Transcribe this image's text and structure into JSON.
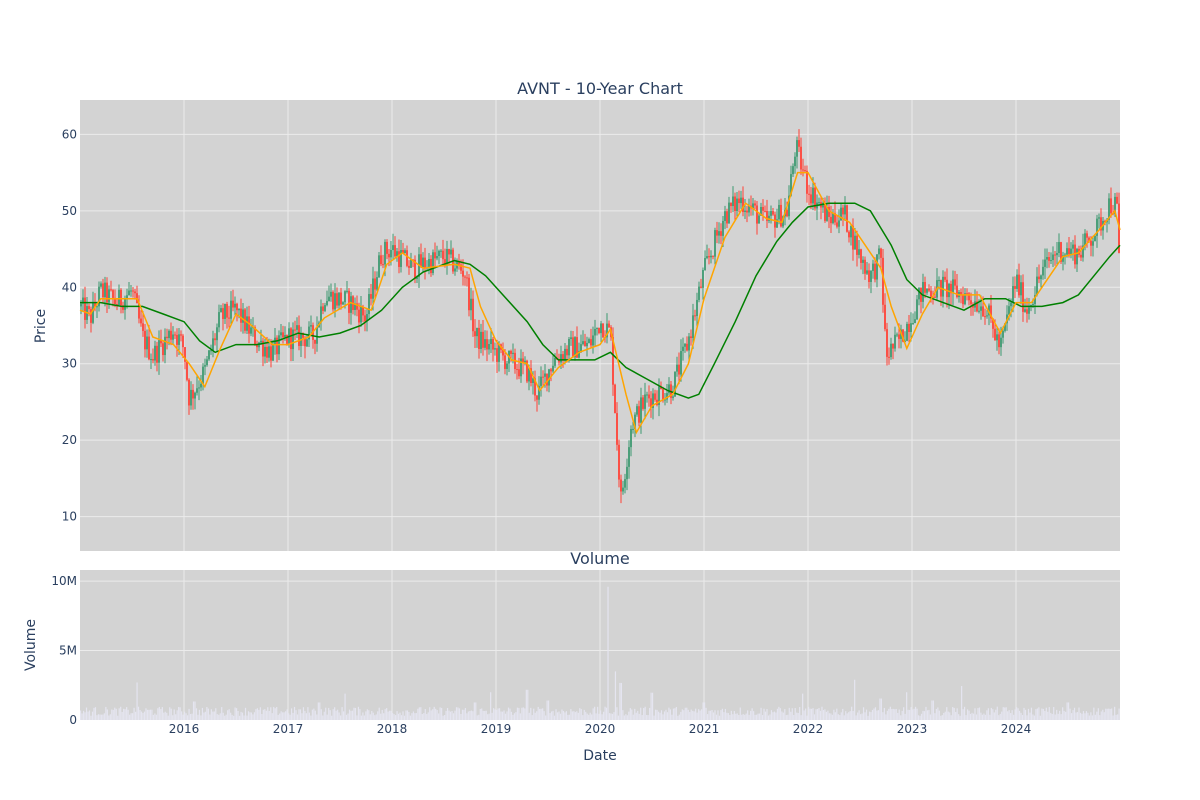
{
  "colors": {
    "background": "#ffffff",
    "plot_bg": "#d3d3d3",
    "grid": "#ebebeb",
    "text": "#2a3f5f",
    "candle_up": "#3d9970",
    "candle_down": "#ff4136",
    "ma_short": "#ffa500",
    "ma_long": "#008000",
    "volume": "#e5e5f0"
  },
  "chart_data": [
    {
      "type": "candlestick",
      "title": "AVNT - 10-Year Chart",
      "ylabel": "Price",
      "xlabel": "",
      "ylim": [
        5.5,
        64.5
      ],
      "x_range": [
        2015.0,
        2025.0
      ],
      "yticks": [
        10,
        20,
        30,
        40,
        50,
        60
      ],
      "ytick_labels": [
        "10",
        "20",
        "30",
        "40",
        "50",
        "60"
      ],
      "grid": true,
      "legend": "none",
      "series": [
        {
          "role": "close",
          "x": [
            2015.0,
            2015.1,
            2015.2,
            2015.35,
            2015.5,
            2015.6,
            2015.7,
            2015.9,
            2016.0,
            2016.05,
            2016.2,
            2016.35,
            2016.5,
            2016.7,
            2016.85,
            2017.0,
            2017.25,
            2017.35,
            2017.6,
            2017.75,
            2017.9,
            2018.0,
            2018.2,
            2018.5,
            2018.7,
            2018.8,
            2018.95,
            2019.1,
            2019.3,
            2019.4,
            2019.55,
            2019.7,
            2019.9,
            2020.0,
            2020.1,
            2020.2,
            2020.3,
            2020.45,
            2020.7,
            2020.85,
            2021.0,
            2021.2,
            2021.35,
            2021.6,
            2021.8,
            2021.88,
            2022.0,
            2022.2,
            2022.35,
            2022.5,
            2022.6,
            2022.7,
            2022.75,
            2022.9,
            2023.1,
            2023.3,
            2023.5,
            2023.7,
            2023.85,
            2024.0,
            2024.1,
            2024.25,
            2024.4,
            2024.6,
            2024.8,
            2024.9,
            2024.97,
            2025.0
          ],
          "values": [
            37.5,
            36.0,
            39.5,
            38.0,
            39.5,
            33.5,
            31.0,
            34.5,
            32.0,
            25.5,
            29.0,
            36.0,
            37.0,
            33.0,
            31.5,
            33.5,
            33.5,
            39.0,
            38.0,
            36.0,
            44.5,
            45.0,
            42.5,
            44.0,
            42.0,
            33.5,
            32.0,
            30.5,
            29.0,
            26.0,
            30.5,
            32.0,
            32.5,
            35.5,
            34.0,
            12.0,
            22.0,
            25.5,
            27.0,
            33.0,
            42.0,
            49.5,
            51.5,
            48.5,
            50.0,
            58.5,
            53.0,
            49.0,
            49.5,
            44.0,
            41.5,
            44.0,
            31.0,
            33.5,
            39.5,
            40.0,
            39.0,
            37.5,
            32.0,
            41.0,
            37.0,
            42.0,
            45.0,
            44.5,
            48.0,
            51.0,
            50.5,
            40.5
          ]
        },
        {
          "role": "moving_average_short",
          "x": [
            2015.0,
            2015.1,
            2015.2,
            2015.4,
            2015.55,
            2015.7,
            2015.9,
            2016.05,
            2016.2,
            2016.35,
            2016.5,
            2016.65,
            2016.85,
            2017.0,
            2017.2,
            2017.35,
            2017.6,
            2017.8,
            2017.95,
            2018.1,
            2018.3,
            2018.6,
            2018.75,
            2018.85,
            2019.0,
            2019.15,
            2019.3,
            2019.42,
            2019.6,
            2019.8,
            2020.0,
            2020.1,
            2020.25,
            2020.35,
            2020.5,
            2020.7,
            2020.85,
            2021.0,
            2021.2,
            2021.4,
            2021.6,
            2021.75,
            2021.9,
            2022.0,
            2022.2,
            2022.4,
            2022.55,
            2022.7,
            2022.8,
            2022.95,
            2023.1,
            2023.25,
            2023.45,
            2023.65,
            2023.85,
            2024.0,
            2024.15,
            2024.3,
            2024.45,
            2024.6,
            2024.8,
            2024.95,
            2025.0
          ],
          "values": [
            37.0,
            36.5,
            38.5,
            38.5,
            38.5,
            33.5,
            32.5,
            30.0,
            27.0,
            32.0,
            36.5,
            35.0,
            32.5,
            32.5,
            33.5,
            36.0,
            38.0,
            37.0,
            43.0,
            44.5,
            42.5,
            43.0,
            42.5,
            37.5,
            33.0,
            30.5,
            30.0,
            26.5,
            29.5,
            31.5,
            32.5,
            34.5,
            26.0,
            21.0,
            24.5,
            26.0,
            30.0,
            38.5,
            46.5,
            51.0,
            49.0,
            48.5,
            55.0,
            55.0,
            50.0,
            48.5,
            45.5,
            42.5,
            37.5,
            32.0,
            36.5,
            40.0,
            39.0,
            39.0,
            34.0,
            38.0,
            38.0,
            41.0,
            44.0,
            44.5,
            47.5,
            50.0,
            47.5
          ]
        },
        {
          "role": "moving_average_long",
          "x": [
            2015.0,
            2015.2,
            2015.4,
            2015.6,
            2015.8,
            2016.0,
            2016.15,
            2016.3,
            2016.5,
            2016.7,
            2016.9,
            2017.1,
            2017.3,
            2017.5,
            2017.7,
            2017.9,
            2018.1,
            2018.3,
            2018.5,
            2018.6,
            2018.75,
            2018.9,
            2019.1,
            2019.3,
            2019.45,
            2019.6,
            2019.75,
            2019.95,
            2020.1,
            2020.25,
            2020.45,
            2020.65,
            2020.85,
            2020.95,
            2021.1,
            2021.3,
            2021.5,
            2021.7,
            2021.85,
            2022.0,
            2022.2,
            2022.45,
            2022.6,
            2022.8,
            2022.95,
            2023.1,
            2023.3,
            2023.5,
            2023.7,
            2023.9,
            2024.05,
            2024.25,
            2024.45,
            2024.6,
            2024.75,
            2024.9,
            2025.0
          ],
          "values": [
            38.0,
            38.0,
            37.5,
            37.5,
            36.5,
            35.5,
            33.0,
            31.5,
            32.5,
            32.5,
            33.0,
            34.0,
            33.5,
            34.0,
            35.0,
            37.0,
            40.0,
            42.0,
            43.0,
            43.5,
            43.0,
            41.5,
            38.5,
            35.5,
            32.5,
            30.5,
            30.5,
            30.5,
            31.5,
            29.5,
            28.0,
            26.5,
            25.5,
            26.0,
            30.0,
            35.5,
            41.5,
            46.0,
            48.5,
            50.5,
            51.0,
            51.0,
            50.0,
            45.5,
            41.0,
            39.0,
            38.0,
            37.0,
            38.5,
            38.5,
            37.5,
            37.5,
            38.0,
            39.0,
            41.5,
            44.0,
            45.5
          ]
        }
      ]
    },
    {
      "type": "bar",
      "title": "Volume",
      "ylabel": "Volume",
      "xlabel": "Date",
      "ylim": [
        0,
        10800000
      ],
      "x_range": [
        2015.0,
        2025.0
      ],
      "yticks": [
        0,
        5000000,
        10000000
      ],
      "ytick_labels": [
        "0",
        "5M",
        "10M"
      ],
      "xticks": [
        2016,
        2017,
        2018,
        2019,
        2020,
        2021,
        2022,
        2023,
        2024
      ],
      "xtick_labels": [
        "2016",
        "2017",
        "2018",
        "2019",
        "2020",
        "2021",
        "2022",
        "2023",
        "2024"
      ],
      "grid": true,
      "legend": "none",
      "baseline_volume": 600000,
      "volume_peaks": [
        {
          "x": 2015.55,
          "value": 2700000
        },
        {
          "x": 2016.1,
          "value": 1900000
        },
        {
          "x": 2017.3,
          "value": 1800000
        },
        {
          "x": 2017.55,
          "value": 1900000
        },
        {
          "x": 2018.8,
          "value": 1800000
        },
        {
          "x": 2018.95,
          "value": 2000000
        },
        {
          "x": 2019.3,
          "value": 3100000
        },
        {
          "x": 2019.5,
          "value": 2000000
        },
        {
          "x": 2020.08,
          "value": 10200000
        },
        {
          "x": 2020.15,
          "value": 3500000
        },
        {
          "x": 2020.2,
          "value": 3800000
        },
        {
          "x": 2020.5,
          "value": 2800000
        },
        {
          "x": 2021.0,
          "value": 1800000
        },
        {
          "x": 2021.95,
          "value": 1900000
        },
        {
          "x": 2022.45,
          "value": 2900000
        },
        {
          "x": 2022.7,
          "value": 2200000
        },
        {
          "x": 2022.95,
          "value": 2000000
        },
        {
          "x": 2023.2,
          "value": 2000000
        },
        {
          "x": 2023.48,
          "value": 2600000
        },
        {
          "x": 2024.5,
          "value": 1800000
        }
      ]
    }
  ]
}
